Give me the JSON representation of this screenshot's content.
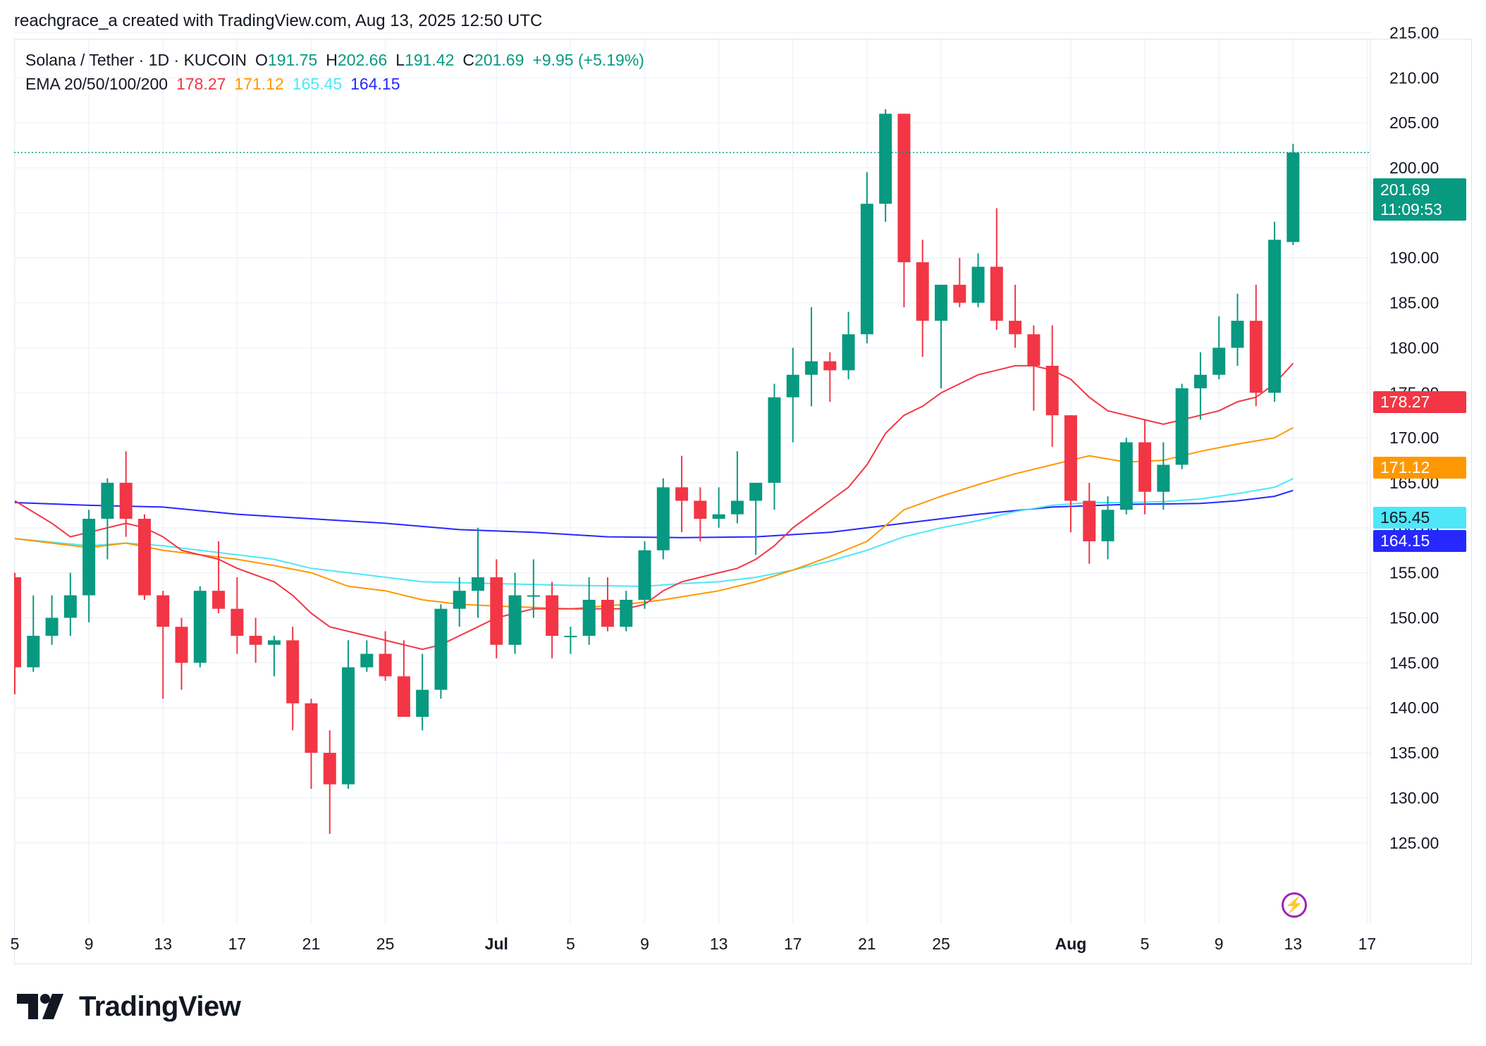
{
  "header": {
    "credit": "reachgrace_a created with TradingView.com, Aug 13, 2025 12:50 UTC"
  },
  "legend": {
    "symbol": "Solana / Tether · 1D · KUCOIN",
    "open_label": "O",
    "open": "191.75",
    "high_label": "H",
    "high": "202.66",
    "low_label": "L",
    "low": "191.42",
    "close_label": "C",
    "close": "201.69",
    "change": "+9.95 (+5.19%)",
    "ema_label": "EMA 20/50/100/200",
    "ema20": "178.27",
    "ema50": "171.12",
    "ema100": "165.45",
    "ema200": "164.15"
  },
  "price_tags": {
    "last_price": "201.69",
    "countdown": "11:09:53",
    "ema20": "178.27",
    "ema50": "171.12",
    "ema100": "165.45",
    "ema200": "164.15"
  },
  "colors": {
    "up": "#089981",
    "down": "#f23645",
    "ema20": "#f23645",
    "ema50": "#ff9800",
    "ema100": "#4ee7f7",
    "ema200": "#2727ff",
    "grid": "#f0f3fa"
  },
  "brand": {
    "logo_text": "TradingView",
    "logo_icon": "tradingview-logo-icon",
    "flash_icon": "lightning-icon"
  },
  "chart_data": {
    "type": "candlestick",
    "title": "Solana / Tether · 1D · KUCOIN",
    "ylim": [
      121,
      220
    ],
    "y_ticks": [
      "215.00",
      "210.00",
      "205.00",
      "200.00",
      "195.00",
      "190.00",
      "185.00",
      "180.00",
      "175.00",
      "170.00",
      "165.00",
      "160.00",
      "155.00",
      "150.00",
      "145.00",
      "140.00",
      "135.00",
      "130.00",
      "125.00"
    ],
    "x_ticks": [
      {
        "label": "5",
        "x": "2025-06-05"
      },
      {
        "label": "9",
        "x": "2025-06-09"
      },
      {
        "label": "13",
        "x": "2025-06-13"
      },
      {
        "label": "17",
        "x": "2025-06-17"
      },
      {
        "label": "21",
        "x": "2025-06-21"
      },
      {
        "label": "25",
        "x": "2025-06-25"
      },
      {
        "label": "Jul",
        "x": "2025-07-01",
        "bold": true
      },
      {
        "label": "5",
        "x": "2025-07-05"
      },
      {
        "label": "9",
        "x": "2025-07-09"
      },
      {
        "label": "13",
        "x": "2025-07-13"
      },
      {
        "label": "17",
        "x": "2025-07-17"
      },
      {
        "label": "21",
        "x": "2025-07-21"
      },
      {
        "label": "25",
        "x": "2025-07-25"
      },
      {
        "label": "Aug",
        "x": "2025-08-01",
        "bold": true
      },
      {
        "label": "5",
        "x": "2025-08-05"
      },
      {
        "label": "9",
        "x": "2025-08-09"
      },
      {
        "label": "13",
        "x": "2025-08-13"
      },
      {
        "label": "17",
        "x": "2025-08-17"
      }
    ],
    "candles": [
      [
        "2025-06-05",
        154.5,
        155.0,
        141.5,
        144.5
      ],
      [
        "2025-06-06",
        144.5,
        152.5,
        144.0,
        148.0
      ],
      [
        "2025-06-07",
        148.0,
        152.5,
        147.0,
        150.0
      ],
      [
        "2025-06-08",
        150.0,
        155.0,
        148.0,
        152.5
      ],
      [
        "2025-06-09",
        152.5,
        162.0,
        149.5,
        161.0
      ],
      [
        "2025-06-10",
        161.0,
        165.5,
        156.5,
        165.0
      ],
      [
        "2025-06-11",
        165.0,
        168.5,
        159.0,
        161.0
      ],
      [
        "2025-06-12",
        161.0,
        161.5,
        152.0,
        152.5
      ],
      [
        "2025-06-13",
        152.5,
        153.0,
        141.0,
        149.0
      ],
      [
        "2025-06-14",
        149.0,
        150.0,
        142.0,
        145.0
      ],
      [
        "2025-06-15",
        145.0,
        153.5,
        144.5,
        153.0
      ],
      [
        "2025-06-16",
        153.0,
        158.5,
        150.5,
        151.0
      ],
      [
        "2025-06-17",
        151.0,
        154.5,
        146.0,
        148.0
      ],
      [
        "2025-06-18",
        148.0,
        150.0,
        145.0,
        147.0
      ],
      [
        "2025-06-19",
        147.0,
        148.0,
        143.5,
        147.5
      ],
      [
        "2025-06-20",
        147.5,
        149.0,
        137.5,
        140.5
      ],
      [
        "2025-06-21",
        140.5,
        141.0,
        131.0,
        135.0
      ],
      [
        "2025-06-22",
        135.0,
        137.5,
        126.0,
        131.5
      ],
      [
        "2025-06-23",
        131.5,
        147.5,
        131.0,
        144.5
      ],
      [
        "2025-06-24",
        144.5,
        147.5,
        144.0,
        146.0
      ],
      [
        "2025-06-25",
        146.0,
        148.5,
        143.0,
        143.5
      ],
      [
        "2025-06-26",
        143.5,
        147.5,
        139.0,
        139.0
      ],
      [
        "2025-06-27",
        139.0,
        146.0,
        137.5,
        142.0
      ],
      [
        "2025-06-28",
        142.0,
        151.5,
        141.0,
        151.0
      ],
      [
        "2025-06-29",
        151.0,
        154.5,
        149.0,
        153.0
      ],
      [
        "2025-06-30",
        153.0,
        160.0,
        150.0,
        154.5
      ],
      [
        "2025-07-01",
        154.5,
        156.5,
        145.5,
        147.0
      ],
      [
        "2025-07-02",
        147.0,
        155.0,
        146.0,
        152.5
      ],
      [
        "2025-07-03",
        152.5,
        156.5,
        150.0,
        152.5
      ],
      [
        "2025-07-04",
        152.5,
        154.0,
        145.5,
        148.0
      ],
      [
        "2025-07-05",
        148.0,
        149.0,
        146.0,
        148.0
      ],
      [
        "2025-07-06",
        148.0,
        154.5,
        147.0,
        152.0
      ],
      [
        "2025-07-07",
        152.0,
        154.5,
        148.5,
        149.0
      ],
      [
        "2025-07-08",
        149.0,
        153.0,
        148.5,
        152.0
      ],
      [
        "2025-07-09",
        152.0,
        158.5,
        151.0,
        157.5
      ],
      [
        "2025-07-10",
        157.5,
        165.5,
        156.5,
        164.5
      ],
      [
        "2025-07-11",
        164.5,
        168.0,
        159.5,
        163.0
      ],
      [
        "2025-07-12",
        163.0,
        164.5,
        158.5,
        161.0
      ],
      [
        "2025-07-13",
        161.0,
        164.5,
        160.0,
        161.5
      ],
      [
        "2025-07-14",
        161.5,
        168.5,
        160.5,
        163.0
      ],
      [
        "2025-07-15",
        163.0,
        164.5,
        157.0,
        165.0
      ],
      [
        "2025-07-16",
        165.0,
        176.0,
        162.0,
        174.5
      ],
      [
        "2025-07-17",
        174.5,
        180.0,
        169.5,
        177.0
      ],
      [
        "2025-07-18",
        177.0,
        184.5,
        173.5,
        178.5
      ],
      [
        "2025-07-19",
        178.5,
        179.5,
        174.0,
        177.5
      ],
      [
        "2025-07-20",
        177.5,
        184.0,
        176.5,
        181.5
      ],
      [
        "2025-07-21",
        181.5,
        199.5,
        180.5,
        196.0
      ],
      [
        "2025-07-22",
        196.0,
        206.5,
        194.0,
        206.0
      ],
      [
        "2025-07-23",
        206.0,
        206.0,
        184.5,
        189.5
      ],
      [
        "2025-07-24",
        189.5,
        192.0,
        179.0,
        183.0
      ],
      [
        "2025-07-25",
        183.0,
        187.0,
        175.5,
        187.0
      ],
      [
        "2025-07-26",
        187.0,
        190.0,
        184.5,
        185.0
      ],
      [
        "2025-07-27",
        185.0,
        190.5,
        184.5,
        189.0
      ],
      [
        "2025-07-28",
        189.0,
        195.5,
        182.0,
        183.0
      ],
      [
        "2025-07-29",
        183.0,
        187.0,
        180.0,
        181.5
      ],
      [
        "2025-07-30",
        181.5,
        182.5,
        173.0,
        178.0
      ],
      [
        "2025-07-31",
        178.0,
        182.5,
        169.0,
        172.5
      ],
      [
        "2025-08-01",
        172.5,
        172.5,
        159.5,
        163.0
      ],
      [
        "2025-08-02",
        163.0,
        165.0,
        156.0,
        158.5
      ],
      [
        "2025-08-03",
        158.5,
        163.5,
        156.5,
        162.0
      ],
      [
        "2025-08-04",
        162.0,
        170.0,
        161.5,
        169.5
      ],
      [
        "2025-08-05",
        169.5,
        172.0,
        161.5,
        164.0
      ],
      [
        "2025-08-06",
        164.0,
        169.5,
        162.0,
        167.0
      ],
      [
        "2025-08-07",
        167.0,
        176.0,
        166.5,
        175.5
      ],
      [
        "2025-08-08",
        175.5,
        179.5,
        172.0,
        177.0
      ],
      [
        "2025-08-09",
        177.0,
        183.5,
        176.5,
        180.0
      ],
      [
        "2025-08-10",
        180.0,
        186.0,
        178.0,
        183.0
      ],
      [
        "2025-08-11",
        183.0,
        187.0,
        173.5,
        175.0
      ],
      [
        "2025-08-12",
        175.0,
        194.0,
        174.0,
        192.0
      ],
      [
        "2025-08-13",
        191.75,
        202.66,
        191.42,
        201.69
      ]
    ],
    "series": [
      {
        "name": "EMA 20",
        "values": [
          [
            0,
            163.0
          ],
          [
            2,
            160.5
          ],
          [
            3,
            159.0
          ],
          [
            4,
            159.5
          ],
          [
            5,
            160.0
          ],
          [
            6,
            160.5
          ],
          [
            7,
            160.0
          ],
          [
            8,
            159.0
          ],
          [
            9,
            157.5
          ],
          [
            10,
            157.0
          ],
          [
            11,
            156.5
          ],
          [
            12,
            155.5
          ],
          [
            14,
            154.0
          ],
          [
            15,
            152.5
          ],
          [
            16,
            150.5
          ],
          [
            17,
            149.0
          ],
          [
            18,
            148.5
          ],
          [
            19,
            148.0
          ],
          [
            20,
            147.5
          ],
          [
            21,
            147.0
          ],
          [
            22,
            146.5
          ],
          [
            23,
            147.0
          ],
          [
            24,
            148.0
          ],
          [
            25,
            149.0
          ],
          [
            26,
            150.0
          ],
          [
            27,
            150.5
          ],
          [
            28,
            151.0
          ],
          [
            29,
            151.0
          ],
          [
            30,
            151.0
          ],
          [
            31,
            151.0
          ],
          [
            32,
            151.0
          ],
          [
            33,
            151.0
          ],
          [
            34,
            151.5
          ],
          [
            35,
            153.0
          ],
          [
            36,
            154.0
          ],
          [
            37,
            154.5
          ],
          [
            38,
            155.0
          ],
          [
            39,
            155.5
          ],
          [
            40,
            156.5
          ],
          [
            41,
            158.0
          ],
          [
            42,
            160.0
          ],
          [
            43,
            161.5
          ],
          [
            44,
            163.0
          ],
          [
            45,
            164.5
          ],
          [
            46,
            167.0
          ],
          [
            47,
            170.5
          ],
          [
            48,
            172.5
          ],
          [
            49,
            173.5
          ],
          [
            50,
            175.0
          ],
          [
            51,
            176.0
          ],
          [
            52,
            177.0
          ],
          [
            53,
            177.5
          ],
          [
            54,
            178.0
          ],
          [
            55,
            178.0
          ],
          [
            56,
            177.5
          ],
          [
            57,
            176.5
          ],
          [
            58,
            174.5
          ],
          [
            59,
            173.0
          ],
          [
            60,
            172.5
          ],
          [
            61,
            172.0
          ],
          [
            62,
            171.5
          ],
          [
            63,
            172.0
          ],
          [
            64,
            172.5
          ],
          [
            65,
            173.0
          ],
          [
            66,
            174.0
          ],
          [
            67,
            174.5
          ],
          [
            68,
            176.0
          ],
          [
            69,
            178.27
          ]
        ]
      },
      {
        "name": "EMA 50",
        "values": [
          [
            0,
            158.8
          ],
          [
            4,
            157.8
          ],
          [
            6,
            158.3
          ],
          [
            8,
            157.5
          ],
          [
            12,
            156.5
          ],
          [
            14,
            155.8
          ],
          [
            16,
            155.0
          ],
          [
            18,
            153.5
          ],
          [
            20,
            153.0
          ],
          [
            22,
            152.0
          ],
          [
            24,
            151.5
          ],
          [
            26,
            151.3
          ],
          [
            30,
            151.0
          ],
          [
            33,
            151.5
          ],
          [
            35,
            152.0
          ],
          [
            38,
            153.0
          ],
          [
            40,
            154.0
          ],
          [
            42,
            155.3
          ],
          [
            44,
            156.8
          ],
          [
            46,
            158.5
          ],
          [
            48,
            162.0
          ],
          [
            50,
            163.5
          ],
          [
            52,
            164.8
          ],
          [
            54,
            166.0
          ],
          [
            56,
            167.0
          ],
          [
            58,
            168.0
          ],
          [
            60,
            167.3
          ],
          [
            62,
            167.5
          ],
          [
            64,
            168.5
          ],
          [
            66,
            169.3
          ],
          [
            68,
            170.0
          ],
          [
            69,
            171.12
          ]
        ]
      },
      {
        "name": "EMA 100",
        "values": [
          [
            0,
            158.8
          ],
          [
            4,
            158.0
          ],
          [
            6,
            158.3
          ],
          [
            8,
            158.0
          ],
          [
            10,
            157.5
          ],
          [
            14,
            156.5
          ],
          [
            16,
            155.5
          ],
          [
            18,
            155.0
          ],
          [
            20,
            154.5
          ],
          [
            22,
            154.0
          ],
          [
            26,
            153.8
          ],
          [
            30,
            153.6
          ],
          [
            34,
            153.5
          ],
          [
            36,
            153.8
          ],
          [
            38,
            154.0
          ],
          [
            40,
            154.5
          ],
          [
            42,
            155.3
          ],
          [
            44,
            156.3
          ],
          [
            46,
            157.5
          ],
          [
            48,
            159.0
          ],
          [
            50,
            160.0
          ],
          [
            52,
            160.8
          ],
          [
            54,
            161.8
          ],
          [
            56,
            162.5
          ],
          [
            58,
            162.8
          ],
          [
            60,
            162.8
          ],
          [
            62,
            162.9
          ],
          [
            64,
            163.2
          ],
          [
            66,
            163.8
          ],
          [
            68,
            164.5
          ],
          [
            69,
            165.45
          ]
        ]
      },
      {
        "name": "EMA 200",
        "values": [
          [
            0,
            162.8
          ],
          [
            4,
            162.5
          ],
          [
            8,
            162.3
          ],
          [
            12,
            161.5
          ],
          [
            16,
            161.0
          ],
          [
            20,
            160.5
          ],
          [
            24,
            159.8
          ],
          [
            28,
            159.5
          ],
          [
            32,
            159.0
          ],
          [
            36,
            158.9
          ],
          [
            40,
            159.0
          ],
          [
            44,
            159.5
          ],
          [
            48,
            160.5
          ],
          [
            52,
            161.5
          ],
          [
            56,
            162.3
          ],
          [
            60,
            162.6
          ],
          [
            64,
            162.7
          ],
          [
            66,
            163.0
          ],
          [
            68,
            163.5
          ],
          [
            69,
            164.15
          ]
        ]
      }
    ]
  }
}
